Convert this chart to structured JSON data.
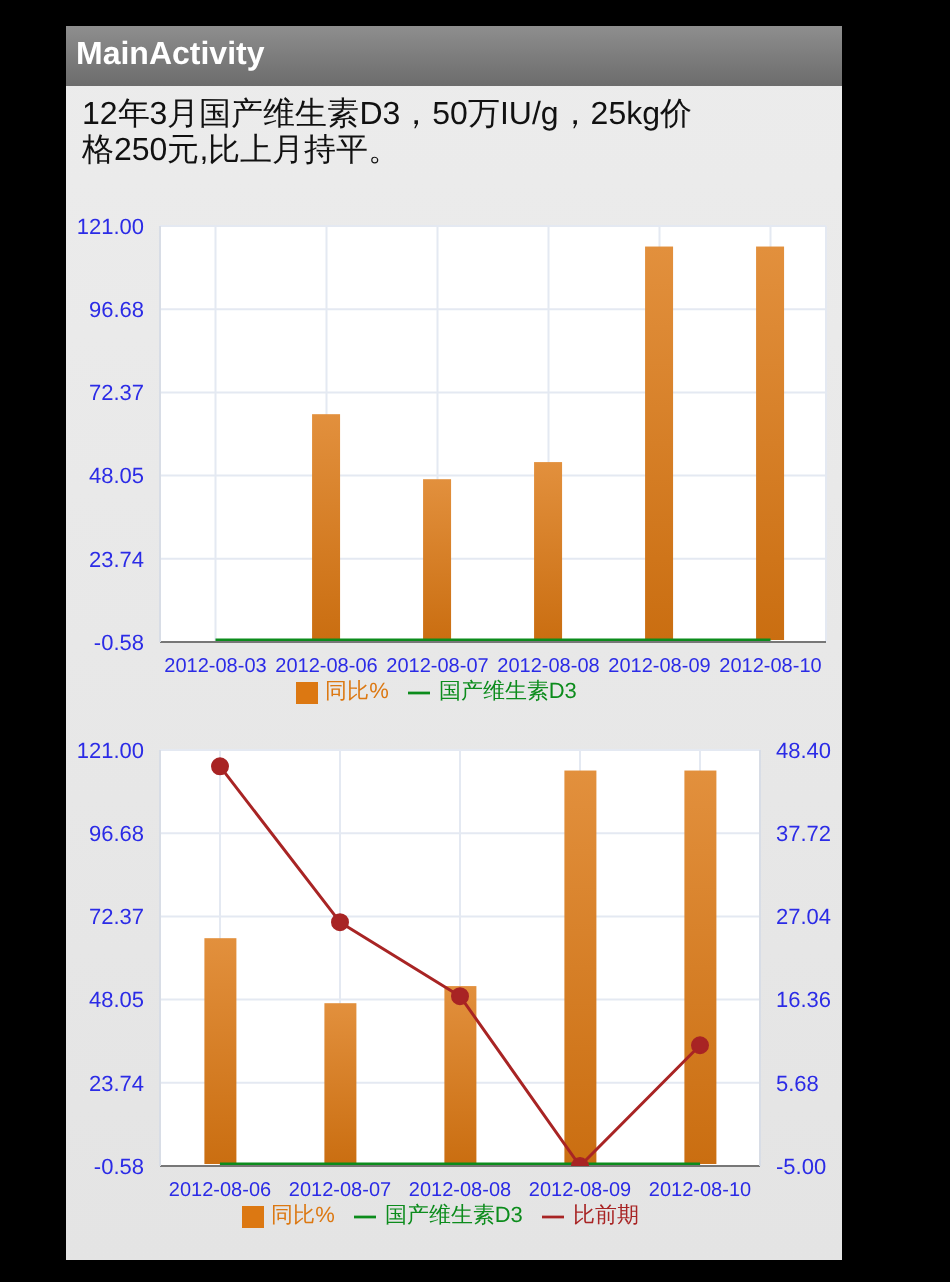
{
  "chart_data": [
    {
      "type": "bar",
      "title": "MainActivity",
      "subtitle": "12年3月国产维生素D3，50万IU/g，25kg价格250元,比上月持平。",
      "categories": [
        "2012-08-03",
        "2012-08-06",
        "2012-08-07",
        "2012-08-08",
        "2012-08-09",
        "2012-08-10"
      ],
      "series": [
        {
          "name": "同比%",
          "color": "#dc7812",
          "values": [
            null,
            66,
            47,
            52,
            115,
            115
          ]
        },
        {
          "name": "国产维生素D3",
          "type": "line",
          "color": "#0c8c1c",
          "values": [
            0,
            0,
            0,
            0,
            0,
            0
          ]
        }
      ],
      "ylim": [
        -0.58,
        121
      ],
      "yticks": [
        -0.58,
        23.74,
        48.05,
        72.37,
        96.68,
        {
          "value": 121,
          "label": "121.00"
        }
      ],
      "grid": true,
      "legend": "bottom"
    },
    {
      "type": "bar",
      "categories": [
        "2012-08-06",
        "2012-08-07",
        "2012-08-08",
        "2012-08-09",
        "2012-08-10"
      ],
      "series": [
        {
          "name": "同比%",
          "color": "#dc7812",
          "values": [
            66,
            47,
            52,
            115,
            115
          ]
        },
        {
          "name": "国产维生素D3",
          "type": "line",
          "color": "#0c8c1c",
          "values": [
            0,
            0,
            0,
            0,
            0
          ]
        },
        {
          "name": "比前期",
          "type": "line",
          "axis": "y2",
          "color": "#a82424",
          "marker": "circle",
          "values": [
            46.3,
            26.3,
            16.8,
            -5,
            10.5
          ]
        }
      ],
      "ylim": [
        -0.58,
        121
      ],
      "yticks": [
        -0.58,
        23.74,
        48.05,
        72.37,
        96.68,
        {
          "value": 121,
          "label": "121.00"
        }
      ],
      "y2lim": [
        -5,
        48.4
      ],
      "y2ticks": [
        {
          "value": -5,
          "label": "-5.00"
        },
        5.68,
        16.36,
        27.04,
        37.72,
        {
          "value": 48.4,
          "label": "48.40"
        }
      ],
      "grid": true,
      "legend": "bottom"
    }
  ]
}
